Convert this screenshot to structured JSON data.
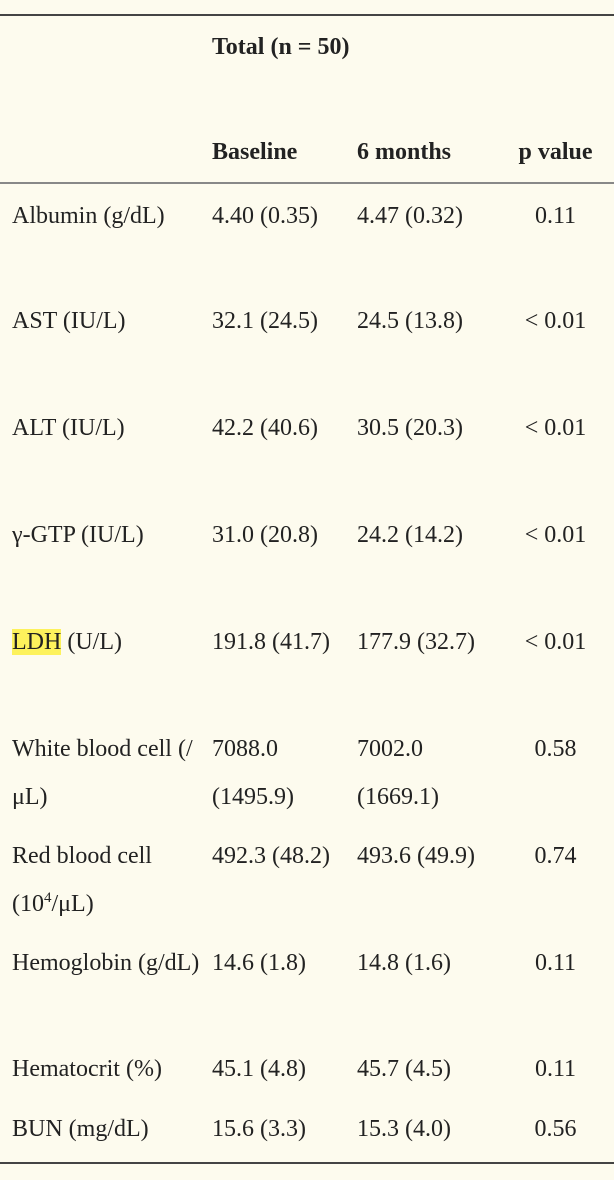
{
  "table": {
    "group_header": "Total (n = 50)",
    "columns": [
      "Baseline",
      "6 months",
      "p value"
    ],
    "rows": [
      {
        "label": "Albumin (g/dL)",
        "label_highlight": "",
        "label_rest": "",
        "baseline": "4.40 (0.35)",
        "six_months": "4.47 (0.32)",
        "p": "0.11"
      },
      {
        "label": "AST (IU/L)",
        "baseline": "32.1 (24.5)",
        "six_months": "24.5 (13.8)",
        "p": "< 0.01"
      },
      {
        "label": "ALT (IU/L)",
        "baseline": "42.2 (40.6)",
        "six_months": "30.5 (20.3)",
        "p": "< 0.01"
      },
      {
        "label": "γ-GTP (IU/L)",
        "baseline": "31.0 (20.8)",
        "six_months": "24.2 (14.2)",
        "p": "< 0.01"
      },
      {
        "label_highlight": "LDH",
        "label_rest": " (U/L)",
        "baseline": "191.8 (41.7)",
        "six_months": "177.9 (32.7)",
        "p": "< 0.01"
      },
      {
        "label": "White blood cell (/μL)",
        "baseline": "7088.0 (1495.9)",
        "six_months": "7002.0 (1669.1)",
        "p": "0.58"
      },
      {
        "label_pre": "Red blood cell (10",
        "label_sup": "4",
        "label_post": "/μL)",
        "baseline": "492.3 (48.2)",
        "six_months": "493.6 (49.9)",
        "p": "0.74"
      },
      {
        "label": "Hemoglobin (g/dL)",
        "baseline": "14.6 (1.8)",
        "six_months": "14.8 (1.6)",
        "p": "0.11"
      },
      {
        "label": "Hematocrit (%)",
        "baseline": "45.1 (4.8)",
        "six_months": "45.7 (4.5)",
        "p": "0.11"
      },
      {
        "label": "BUN (mg/dL)",
        "baseline": "15.6 (3.3)",
        "six_months": "15.3 (4.0)",
        "p": "0.56"
      }
    ]
  },
  "colors": {
    "background": "#fdfbee",
    "highlight": "#fdf25c",
    "rule": "#444444"
  }
}
